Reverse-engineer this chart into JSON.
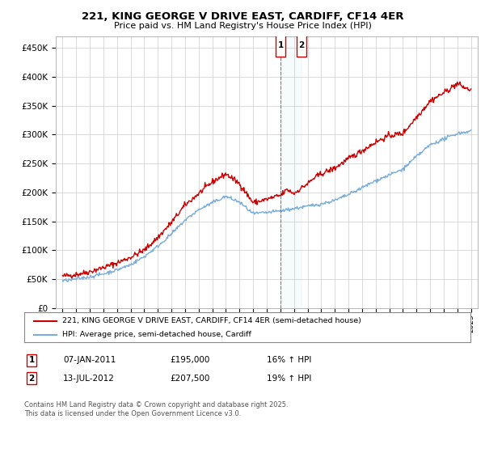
{
  "title": "221, KING GEORGE V DRIVE EAST, CARDIFF, CF14 4ER",
  "subtitle": "Price paid vs. HM Land Registry's House Price Index (HPI)",
  "legend_line1": "221, KING GEORGE V DRIVE EAST, CARDIFF, CF14 4ER (semi-detached house)",
  "legend_line2": "HPI: Average price, semi-detached house, Cardiff",
  "transaction1_date": "07-JAN-2011",
  "transaction1_price": "£195,000",
  "transaction1_hpi": "16% ↑ HPI",
  "transaction2_date": "13-JUL-2012",
  "transaction2_price": "£207,500",
  "transaction2_hpi": "19% ↑ HPI",
  "footnote": "Contains HM Land Registry data © Crown copyright and database right 2025.\nThis data is licensed under the Open Government Licence v3.0.",
  "red_line_color": "#cc0000",
  "blue_line_color": "#7aadda",
  "marker1_x": 2011.03,
  "marker2_x": 2012.54,
  "ylim_min": 0,
  "ylim_max": 470000,
  "xlim_min": 1994.5,
  "xlim_max": 2025.5,
  "background_color": "#ffffff",
  "grid_color": "#cccccc",
  "yticks": [
    0,
    50000,
    100000,
    150000,
    200000,
    250000,
    300000,
    350000,
    400000,
    450000
  ],
  "xtick_years": [
    1995,
    1996,
    1997,
    1998,
    1999,
    2000,
    2001,
    2002,
    2003,
    2004,
    2005,
    2006,
    2007,
    2008,
    2009,
    2010,
    2011,
    2012,
    2013,
    2014,
    2015,
    2016,
    2017,
    2018,
    2019,
    2020,
    2021,
    2022,
    2023,
    2024,
    2025
  ]
}
